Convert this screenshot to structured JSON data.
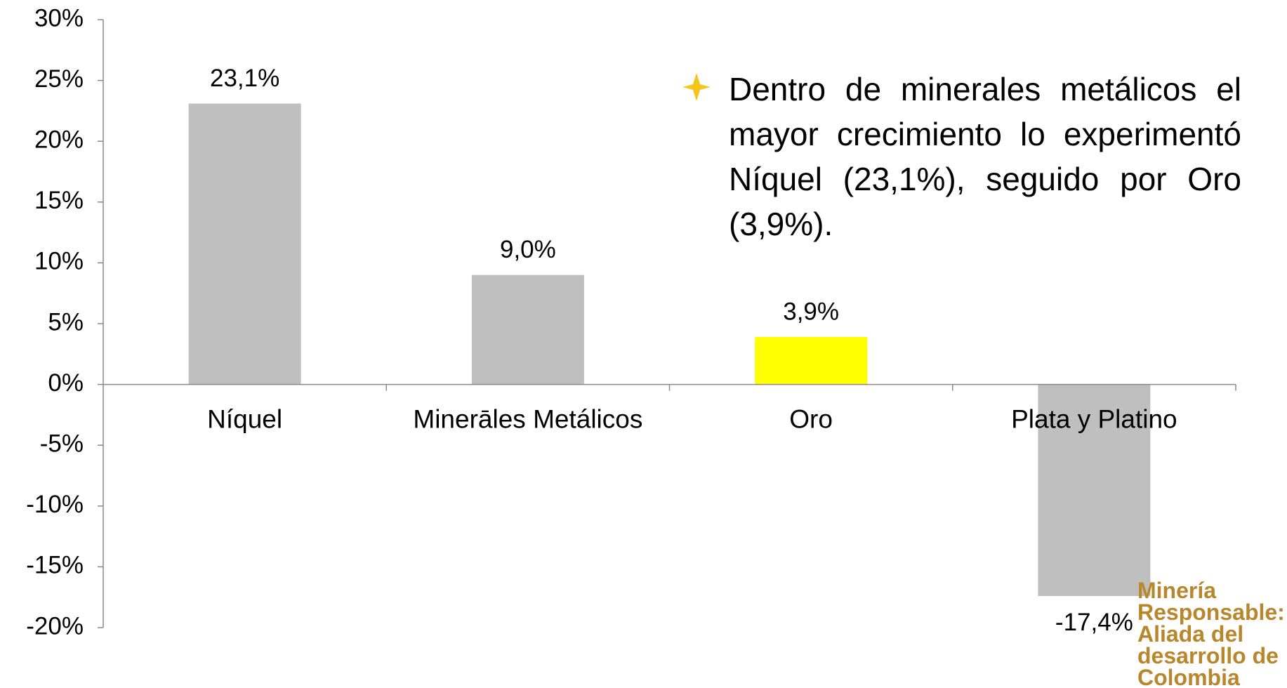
{
  "chart_data": {
    "type": "bar",
    "categories": [
      "Níquel",
      "Minerāles Metálicos",
      "Oro",
      "Plata y Platino"
    ],
    "values": [
      23.1,
      9.0,
      3.9,
      -17.4
    ],
    "value_labels": [
      "23,1%",
      "9,0%",
      "3,9%",
      "-17,4%"
    ],
    "colors": [
      "#bfbfbf",
      "#bfbfbf",
      "#ffff00",
      "#bfbfbf"
    ],
    "ylim": [
      -20,
      30
    ],
    "yticks": [
      {
        "value": -20,
        "label": "-20%"
      },
      {
        "value": -15,
        "label": "-15%"
      },
      {
        "value": -10,
        "label": "-10%"
      },
      {
        "value": -5,
        "label": "-5%"
      },
      {
        "value": 0,
        "label": "0%"
      },
      {
        "value": 5,
        "label": "5%"
      },
      {
        "value": 10,
        "label": "10%"
      },
      {
        "value": 15,
        "label": "15%"
      },
      {
        "value": 20,
        "label": "20%"
      },
      {
        "value": 25,
        "label": "25%"
      },
      {
        "value": 30,
        "label": "30%"
      }
    ],
    "grid": false,
    "annotation": "Dentro de minerales metálicos el mayor crecimiento lo experimentó Níquel (23,1%), seguido por Oro (3,9%)."
  },
  "logo": {
    "lines": [
      "Minería",
      "Responsable:",
      "Aliada del",
      "desarrollo de",
      "Colombia"
    ]
  }
}
